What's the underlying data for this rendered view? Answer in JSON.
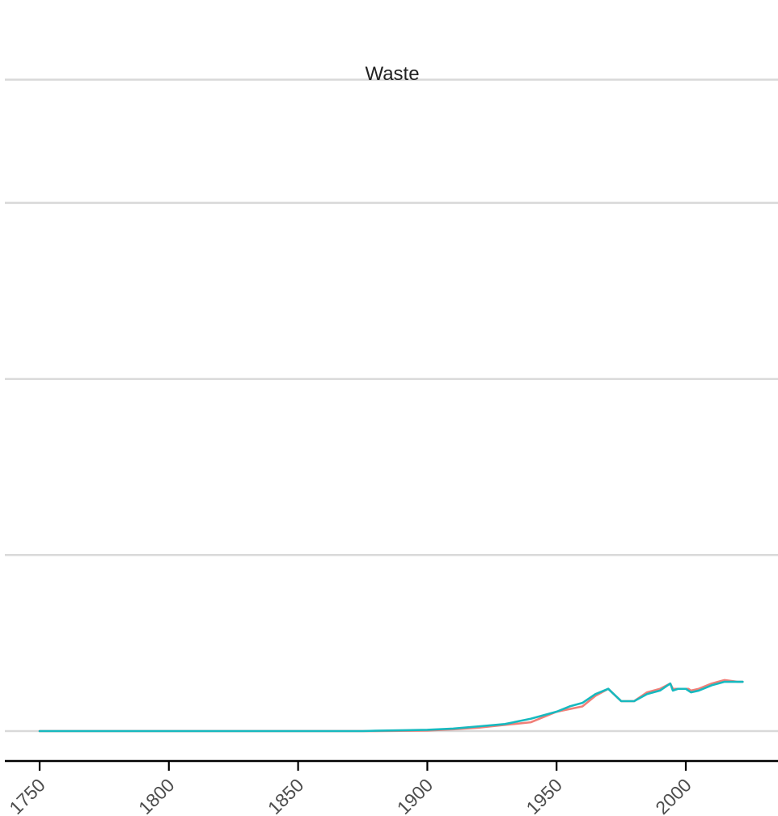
{
  "chart_data": {
    "type": "line",
    "title": "Waste",
    "xlabel": "",
    "ylabel": "",
    "x_ticks": [
      1750,
      1800,
      1850,
      1900,
      1950,
      2000
    ],
    "xlim": [
      1750,
      2022
    ],
    "ylim": [
      0,
      3.7
    ],
    "y_gridlines": [
      0,
      1,
      2,
      3,
      3.7
    ],
    "y_tick_labels_visible": false,
    "grid": "horizontal",
    "legend": "none",
    "series": [
      {
        "color": "#F07F78",
        "x": [
          1750,
          1800,
          1850,
          1880,
          1900,
          1910,
          1920,
          1930,
          1940,
          1950,
          1960,
          1965,
          1970,
          1975,
          1980,
          1985,
          1990,
          1994,
          1995,
          1997,
          2000,
          2001,
          2002,
          2005,
          2010,
          2015,
          2020,
          2022
        ],
        "values": [
          0,
          0,
          0,
          0,
          0.003,
          0.01,
          0.02,
          0.035,
          0.05,
          0.11,
          0.14,
          0.2,
          0.24,
          0.17,
          0.17,
          0.22,
          0.24,
          0.27,
          0.24,
          0.24,
          0.24,
          0.24,
          0.23,
          0.24,
          0.27,
          0.29,
          0.28,
          0.28
        ]
      },
      {
        "color": "#17B9BF",
        "x": [
          1750,
          1800,
          1850,
          1875,
          1880,
          1900,
          1910,
          1920,
          1930,
          1940,
          1950,
          1955,
          1960,
          1965,
          1970,
          1975,
          1980,
          1985,
          1990,
          1994,
          1995,
          1997,
          2000,
          2001,
          2002,
          2005,
          2010,
          2015,
          2020,
          2022
        ],
        "values": [
          0,
          0,
          0,
          0,
          0.002,
          0.007,
          0.014,
          0.027,
          0.04,
          0.07,
          0.11,
          0.14,
          0.16,
          0.21,
          0.24,
          0.17,
          0.17,
          0.21,
          0.23,
          0.27,
          0.23,
          0.24,
          0.24,
          0.23,
          0.22,
          0.23,
          0.26,
          0.28,
          0.28,
          0.28
        ]
      }
    ]
  }
}
